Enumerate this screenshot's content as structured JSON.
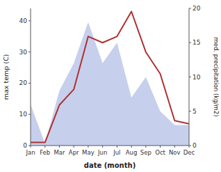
{
  "chart_data": {
    "type": "line",
    "xlabel": "date (month)",
    "ylabel": "max temp (C)",
    "y2label": "med. precipitation (kg/m2)",
    "categories": [
      "Jan",
      "Feb",
      "Mar",
      "Apr",
      "May",
      "Jun",
      "Jul",
      "Aug",
      "Sep",
      "Oct",
      "Nov",
      "Dec"
    ],
    "series": [
      {
        "type": "area",
        "axis": "y2",
        "color": "#b8c4e8",
        "values": [
          6,
          0.3,
          8,
          12,
          18,
          12,
          15,
          7,
          10,
          5,
          3,
          3
        ]
      },
      {
        "type": "line",
        "color": "#b03030",
        "values": [
          1,
          1,
          13,
          18,
          35,
          33,
          35,
          43,
          30,
          23,
          8,
          7
        ]
      }
    ],
    "ylim": [
      0,
      44
    ],
    "yticks": [
      0,
      10,
      20,
      30,
      40
    ],
    "y2lim": [
      0,
      20
    ],
    "y2ticks": [
      0,
      5,
      10,
      15,
      20
    ],
    "grid": false
  }
}
